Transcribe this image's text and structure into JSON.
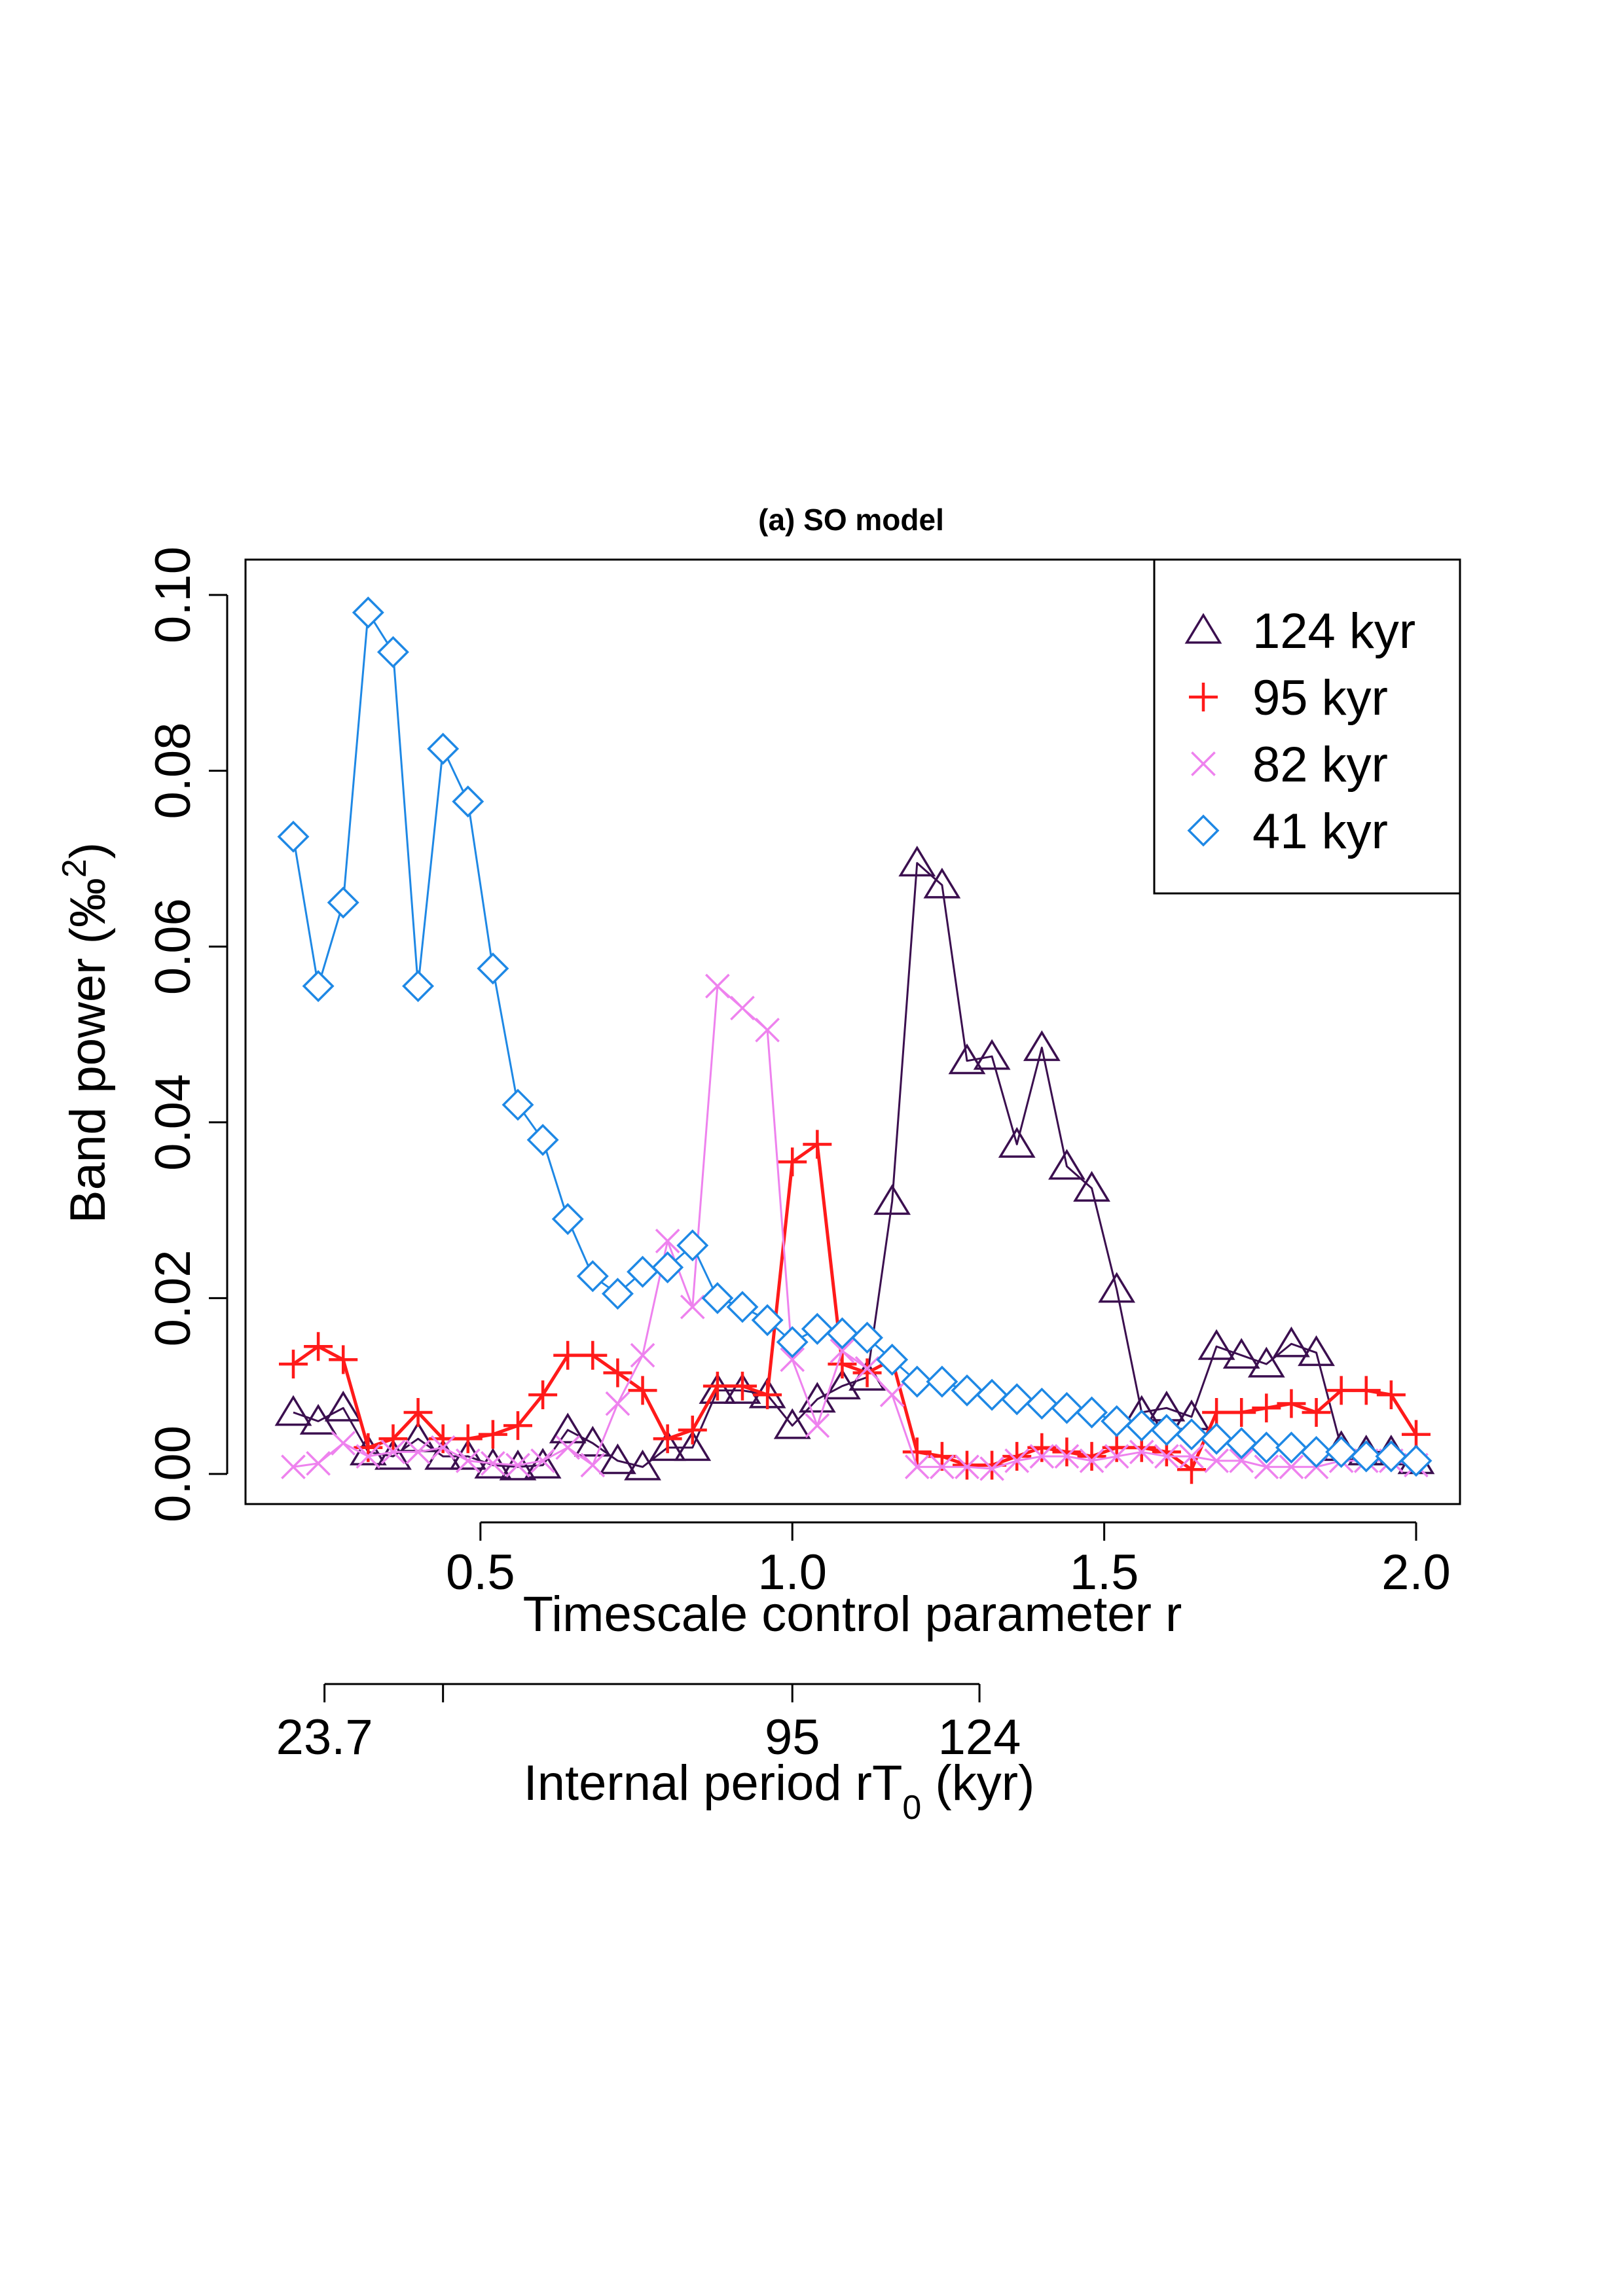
{
  "chart_data": {
    "type": "line",
    "title": "(a) SO model",
    "xlabel": "Timescale control parameter r",
    "ylabel": "Band power (‰²)",
    "ylabel_parts": {
      "base": "Band power (‰",
      "sup": "2",
      "close": ")"
    },
    "xlim": [
      0.2,
      2.0
    ],
    "ylim": [
      0.0,
      0.1
    ],
    "grid": false,
    "legend_position": "top-right",
    "x_ticks": [
      {
        "v": 0.5,
        "label": "0.5"
      },
      {
        "v": 1.0,
        "label": "1.0"
      },
      {
        "v": 1.5,
        "label": "1.5"
      },
      {
        "v": 2.0,
        "label": "2.0"
      }
    ],
    "y_ticks": [
      {
        "v": 0.0,
        "label": "0.00"
      },
      {
        "v": 0.02,
        "label": "0.02"
      },
      {
        "v": 0.04,
        "label": "0.04"
      },
      {
        "v": 0.06,
        "label": "0.06"
      },
      {
        "v": 0.08,
        "label": "0.08"
      },
      {
        "v": 0.1,
        "label": "0.10"
      }
    ],
    "secondary_axis": {
      "label_base": "Internal period rT",
      "label_sub": "0",
      "label_tail": " (kyr)",
      "range_r": [
        0.25,
        1.3
      ],
      "ticks": [
        {
          "r": 0.25,
          "label": "23.7"
        },
        {
          "r": 0.44,
          "label": ""
        },
        {
          "r": 1.0,
          "label": "95"
        },
        {
          "r": 1.3,
          "label": "124"
        }
      ]
    },
    "x": [
      0.2,
      0.24,
      0.28,
      0.32,
      0.36,
      0.4,
      0.44,
      0.48,
      0.52,
      0.56,
      0.6,
      0.64,
      0.68,
      0.72,
      0.76,
      0.8,
      0.84,
      0.88,
      0.92,
      0.96,
      1.0,
      1.04,
      1.08,
      1.12,
      1.16,
      1.2,
      1.24,
      1.28,
      1.32,
      1.36,
      1.4,
      1.44,
      1.48,
      1.52,
      1.56,
      1.6,
      1.64,
      1.68,
      1.72,
      1.76,
      1.8,
      1.84,
      1.88,
      1.92,
      1.96,
      2.0
    ],
    "series": [
      {
        "name": "124 kyr",
        "color": "#3b0f4f",
        "marker": "triangle",
        "line_width": 3,
        "values": [
          0.007,
          0.006,
          0.0075,
          0.0025,
          0.002,
          0.004,
          0.002,
          0.002,
          0.001,
          0.0008,
          0.001,
          0.005,
          0.0035,
          0.0015,
          0.0008,
          0.003,
          0.003,
          0.0095,
          0.0095,
          0.009,
          0.0055,
          0.0085,
          0.01,
          0.011,
          0.031,
          0.0695,
          0.067,
          0.047,
          0.0475,
          0.0375,
          0.0485,
          0.035,
          0.0325,
          0.021,
          0.007,
          0.0075,
          0.0065,
          0.0145,
          0.0135,
          0.0125,
          0.0148,
          0.0138,
          0.003,
          0.0025,
          0.0025,
          0.0015
        ]
      },
      {
        "name": "95 kyr",
        "color": "#ff1a1a",
        "marker": "plus",
        "line_width": 5,
        "values": [
          0.0125,
          0.0145,
          0.013,
          0.003,
          0.004,
          0.007,
          0.004,
          0.004,
          0.0045,
          0.0055,
          0.009,
          0.0135,
          0.0135,
          0.0115,
          0.0095,
          0.004,
          0.005,
          0.01,
          0.01,
          0.009,
          0.0355,
          0.0375,
          0.0125,
          0.0115,
          0.013,
          0.0025,
          0.002,
          0.001,
          0.001,
          0.002,
          0.003,
          0.0025,
          0.002,
          0.003,
          0.003,
          0.0025,
          0.0005,
          0.007,
          0.007,
          0.0075,
          0.008,
          0.007,
          0.0095,
          0.0095,
          0.009,
          0.0045
        ]
      },
      {
        "name": "82 kyr",
        "color": "#ee82ee",
        "marker": "cross",
        "line_width": 3,
        "values": [
          0.0008,
          0.0012,
          0.0035,
          0.002,
          0.0025,
          0.0025,
          0.003,
          0.0015,
          0.0012,
          0.001,
          0.0015,
          0.003,
          0.001,
          0.008,
          0.0135,
          0.0265,
          0.019,
          0.0555,
          0.053,
          0.0505,
          0.013,
          0.0055,
          0.014,
          0.012,
          0.009,
          0.0008,
          0.0008,
          0.0008,
          0.0006,
          0.0015,
          0.002,
          0.002,
          0.0015,
          0.002,
          0.0025,
          0.002,
          0.002,
          0.0015,
          0.0015,
          0.0008,
          0.0008,
          0.0008,
          0.0015,
          0.0015,
          0.0015,
          0.001
        ]
      },
      {
        "name": "41 kyr",
        "color": "#1e88e5",
        "marker": "diamond",
        "line_width": 3,
        "values": [
          0.0725,
          0.0555,
          0.065,
          0.098,
          0.0935,
          0.0555,
          0.0825,
          0.0765,
          0.0575,
          0.042,
          0.038,
          0.029,
          0.0225,
          0.0205,
          0.023,
          0.0235,
          0.026,
          0.02,
          0.019,
          0.0175,
          0.015,
          0.0165,
          0.016,
          0.0155,
          0.013,
          0.0105,
          0.0105,
          0.0095,
          0.009,
          0.0085,
          0.008,
          0.0075,
          0.007,
          0.006,
          0.0055,
          0.005,
          0.0045,
          0.004,
          0.0035,
          0.003,
          0.003,
          0.0025,
          0.0025,
          0.002,
          0.002,
          0.0015
        ]
      }
    ]
  }
}
